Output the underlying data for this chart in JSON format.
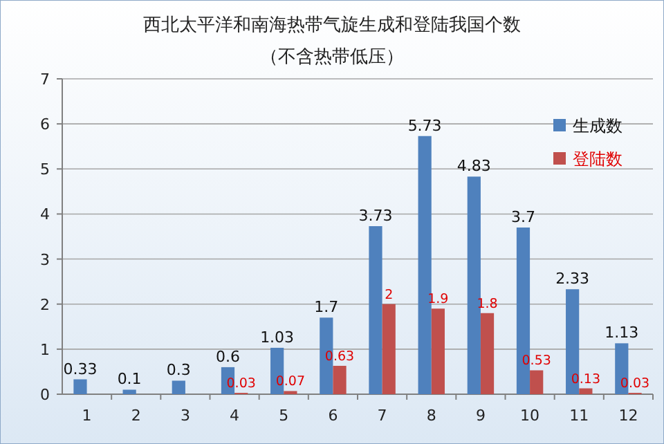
{
  "chart_data": {
    "type": "bar",
    "title": "西北太平洋和南海热带气旋生成和登陆我国个数",
    "subtitle": "（不含热带低压）",
    "categories": [
      "1",
      "2",
      "3",
      "4",
      "5",
      "6",
      "7",
      "8",
      "9",
      "10",
      "11",
      "12"
    ],
    "series": [
      {
        "name": "生成数",
        "color": "#4f81bd",
        "values": [
          0.33,
          0.1,
          0.3,
          0.6,
          1.03,
          1.7,
          3.73,
          5.73,
          4.83,
          3.7,
          2.33,
          1.13
        ]
      },
      {
        "name": "登陆数",
        "color": "#c0504d",
        "values": [
          null,
          null,
          null,
          0.03,
          0.07,
          0.63,
          2,
          1.9,
          1.8,
          0.53,
          0.13,
          0.03
        ]
      }
    ],
    "ylim": [
      0,
      7
    ],
    "yticks": [
      0,
      1,
      2,
      3,
      4,
      5,
      6,
      7
    ],
    "grid": "y",
    "legend": "top right",
    "data_labels": true
  }
}
